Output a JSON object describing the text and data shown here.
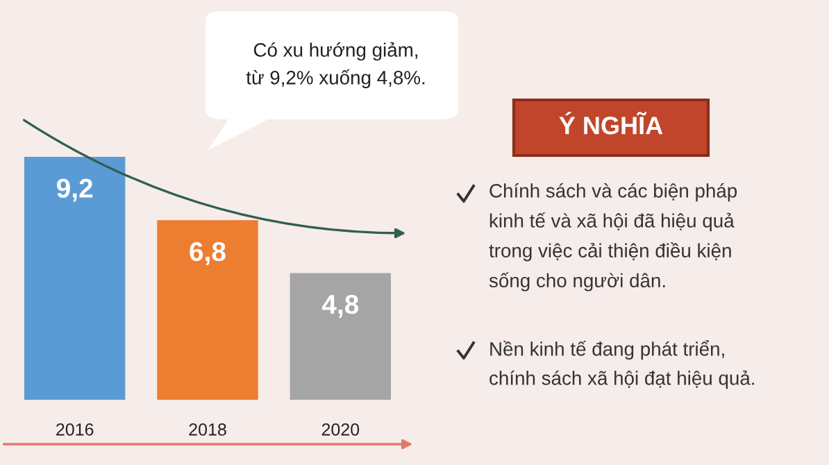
{
  "chart_data": {
    "type": "bar",
    "categories": [
      "2016",
      "2018",
      "2020"
    ],
    "values": [
      9.2,
      6.8,
      4.8
    ],
    "colors": [
      "#5b9bd5",
      "#ed7d31",
      "#a5a5a5"
    ],
    "value_labels": [
      "9,2",
      "6,8",
      "4,8"
    ],
    "grid": false,
    "legend": false,
    "annotations": [
      "Có xu hướng giảm,\ntừ 9,2% xuống 4,8%.",
      "Ý NGHĨA",
      "Chính sách và các biện pháp\nkinh tế và xã hội đã hiệu quả\ntrong việc cải thiện điều kiện\nsống cho người dân.",
      "Nền kinh tế đang phát triển,\nchính sách xã hội đạt hiệu quả."
    ]
  }
}
